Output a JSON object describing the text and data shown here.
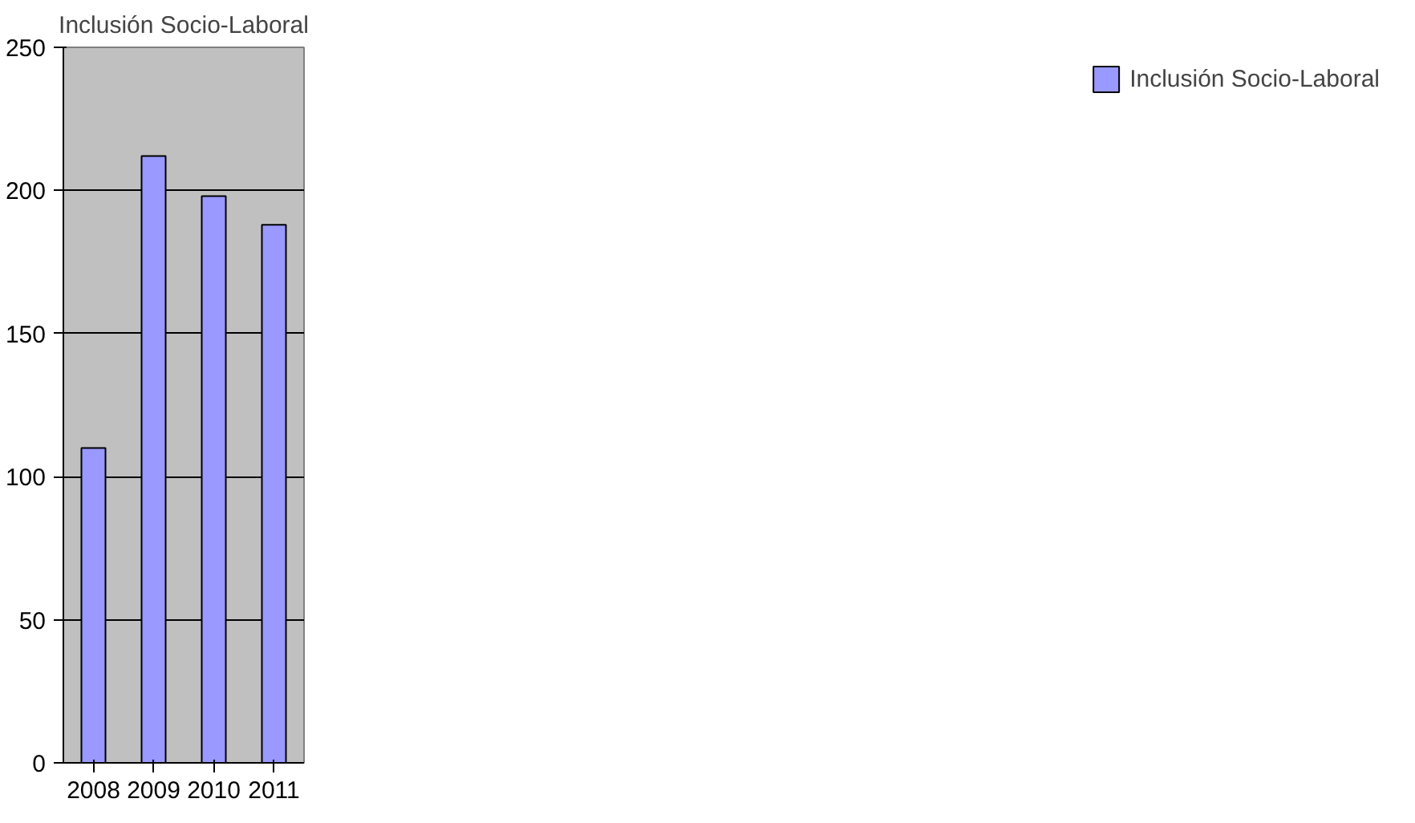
{
  "chart_data": {
    "type": "bar",
    "title": "Inclusión Socio-Laboral",
    "categories": [
      "2008",
      "2009",
      "2010",
      "2011"
    ],
    "series": [
      {
        "name": "Inclusión Socio-Laboral",
        "color": "#9999ff",
        "values": [
          110,
          212,
          198,
          188
        ]
      }
    ],
    "ylim": [
      0,
      250
    ],
    "yticks": [
      0,
      50,
      100,
      150,
      200,
      250
    ],
    "grid": "y",
    "legend": "right"
  }
}
